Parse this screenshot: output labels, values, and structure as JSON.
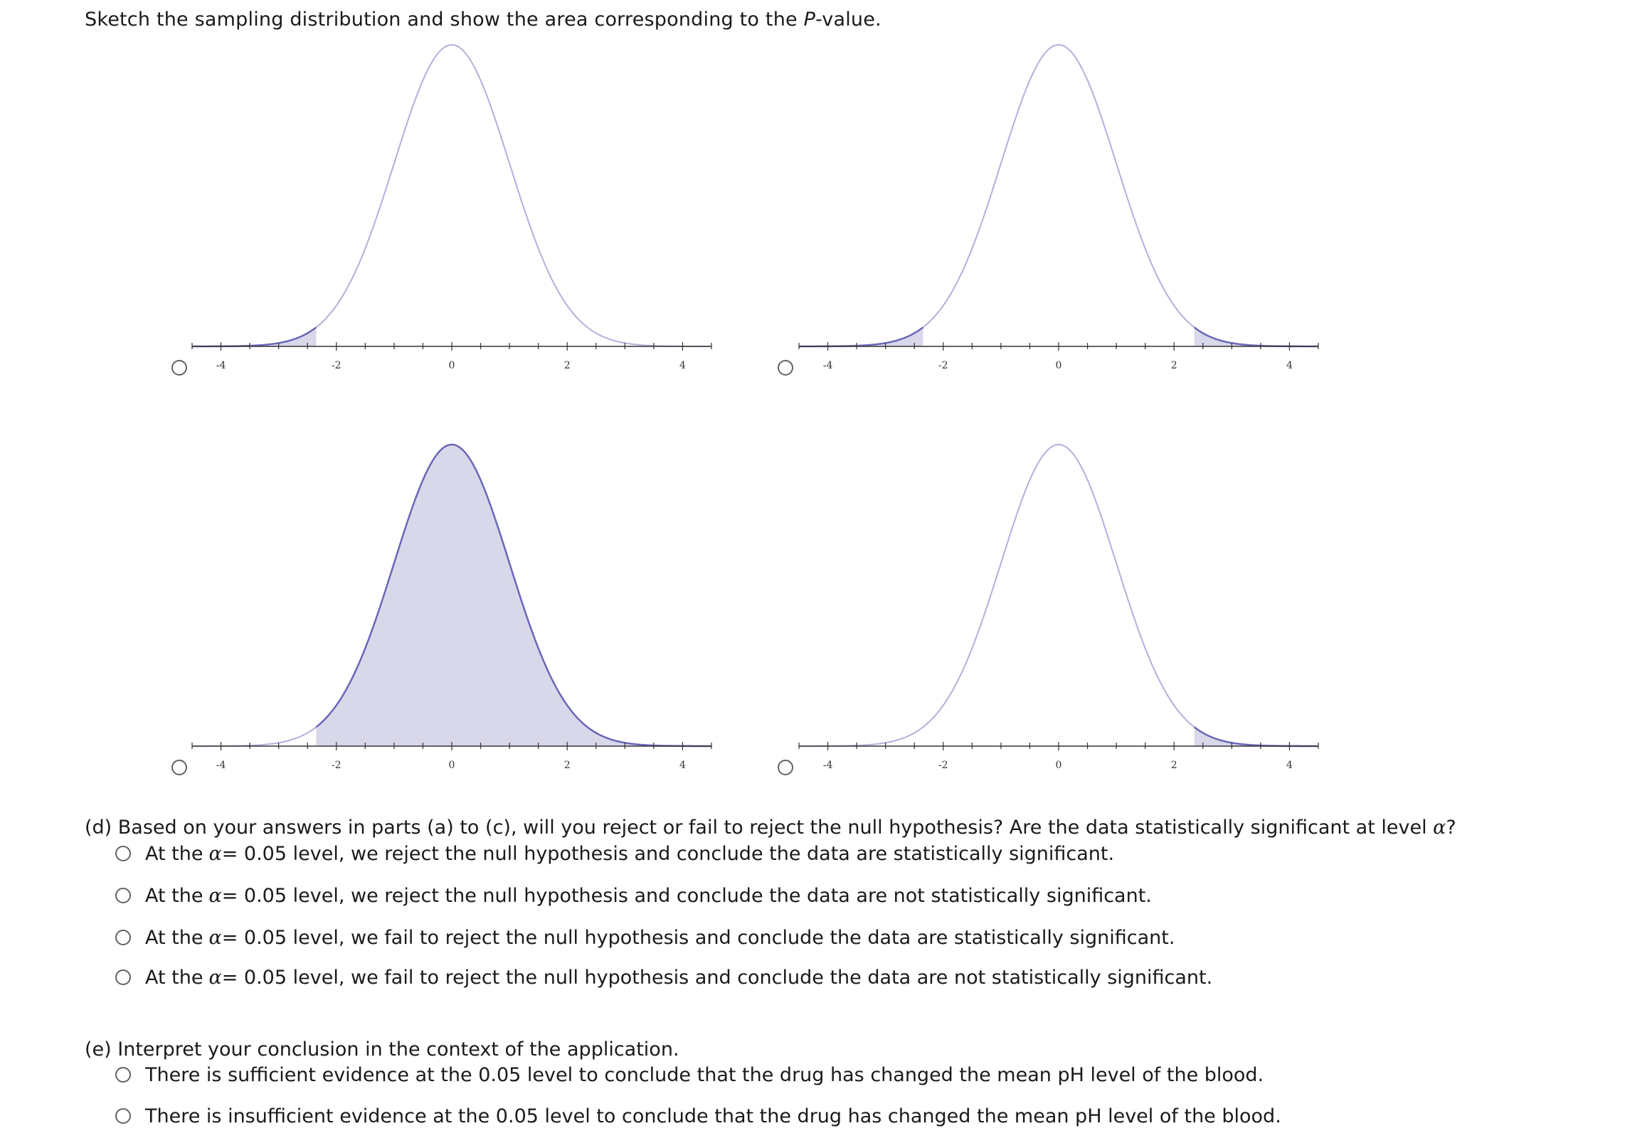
{
  "prompt": {
    "text_before": "Sketch the sampling distribution and show the area corresponding to the ",
    "text_italic": "P",
    "text_after": "-value."
  },
  "colors": {
    "curve_unshaded": "#b3b0dc",
    "curve_shaded": "#6a67b8",
    "fill": "#d9d8ea",
    "axis": "#333333"
  },
  "chart_data": [
    {
      "type": "area",
      "distribution": "standard normal",
      "xlim": [
        -4.5,
        4.5
      ],
      "major_ticks": [
        -4,
        -2,
        0,
        2,
        4
      ],
      "tick_labels": [
        "-4",
        "-2",
        "0",
        "2",
        "4"
      ],
      "shaded_regions": [
        [
          -4.5,
          -2.35
        ]
      ]
    },
    {
      "type": "area",
      "distribution": "standard normal",
      "xlim": [
        -4.5,
        4.5
      ],
      "major_ticks": [
        -4,
        -2,
        0,
        2,
        4
      ],
      "tick_labels": [
        "-4",
        "-2",
        "0",
        "2",
        "4"
      ],
      "shaded_regions": [
        [
          -4.5,
          -2.35
        ],
        [
          2.35,
          4.5
        ]
      ]
    },
    {
      "type": "area",
      "distribution": "standard normal",
      "xlim": [
        -4.5,
        4.5
      ],
      "major_ticks": [
        -4,
        -2,
        0,
        2,
        4
      ],
      "tick_labels": [
        "-4",
        "-2",
        "0",
        "2",
        "4"
      ],
      "shaded_regions": [
        [
          -2.35,
          4.5
        ]
      ]
    },
    {
      "type": "area",
      "distribution": "standard normal",
      "xlim": [
        -4.5,
        4.5
      ],
      "major_ticks": [
        -4,
        -2,
        0,
        2,
        4
      ],
      "tick_labels": [
        "-4",
        "-2",
        "0",
        "2",
        "4"
      ],
      "shaded_regions": [
        [
          2.35,
          4.5
        ]
      ]
    }
  ],
  "part_d": {
    "question_before": "(d) Based on your answers in parts (a) to (c), will you reject or fail to reject the null hypothesis? Are the data statistically significant at level ",
    "question_symbol": "α",
    "question_after": "?",
    "options": [
      {
        "prefix": "At the ",
        "symbol": "α",
        "text": " = 0.05 level, we reject the null hypothesis and conclude the data are statistically significant."
      },
      {
        "prefix": "At the ",
        "symbol": "α",
        "text": " = 0.05 level, we reject the null hypothesis and conclude the data are not statistically significant."
      },
      {
        "prefix": "At the ",
        "symbol": "α",
        "text": " = 0.05 level, we fail to reject the null hypothesis and conclude the data are statistically significant."
      },
      {
        "prefix": "At the ",
        "symbol": "α",
        "text": " = 0.05 level, we fail to reject the null hypothesis and conclude the data are not statistically significant."
      }
    ]
  },
  "part_e": {
    "question": "(e) Interpret your conclusion in the context of the application.",
    "options": [
      {
        "text": "There is sufficient evidence at the 0.05 level to conclude that the drug has changed the mean pH level of the blood."
      },
      {
        "text": "There is insufficient evidence at the 0.05 level to conclude that the drug has changed the mean pH level of the blood."
      }
    ]
  }
}
